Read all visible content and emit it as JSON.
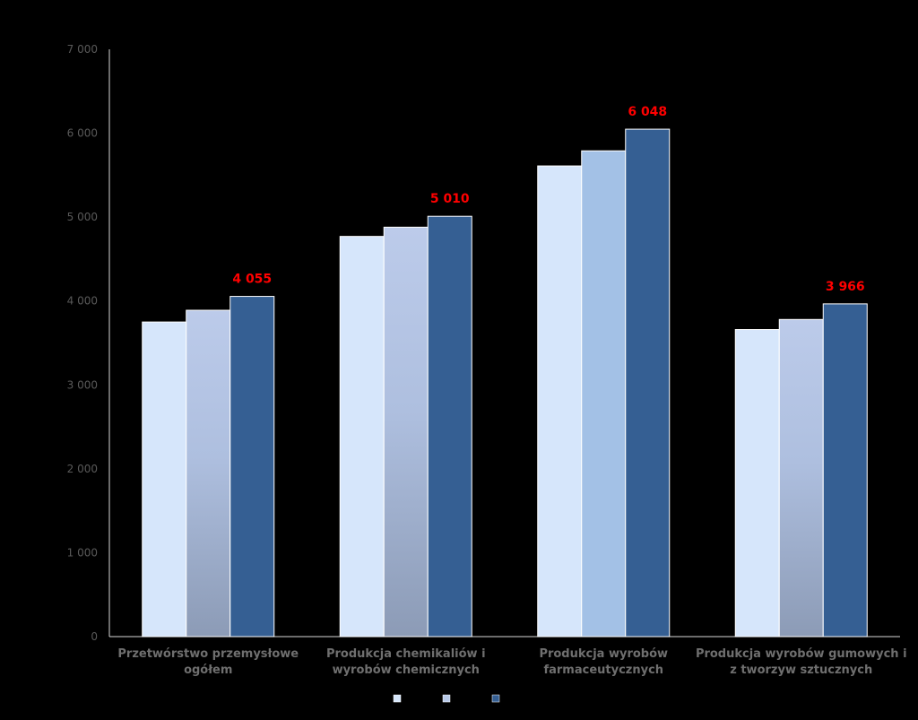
{
  "chart_data": {
    "type": "bar",
    "categories": [
      [
        "Przetwórstwo przemysłowe",
        "ogółem"
      ],
      [
        "Produkcja chemikaliów i",
        "wyrobów chemicznych"
      ],
      [
        "Produkcja wyrobów",
        "farmaceutycznych"
      ],
      [
        "Produkcja wyrobów gumowych i",
        "z tworzyw sztucznych"
      ]
    ],
    "series": [
      {
        "values": [
          3750,
          4770,
          5610,
          3660
        ],
        "color": "#d6e6fb"
      },
      {
        "values": [
          3890,
          4880,
          5790,
          3780
        ],
        "color": "#b7c9e8"
      },
      {
        "values": [
          4055,
          5010,
          6048,
          3966
        ],
        "color": "#355f93"
      }
    ],
    "data_labels": [
      "4 055",
      "5 010",
      "6 048",
      "3 966"
    ],
    "data_label_color": "#ff0000",
    "yticks": [
      "0",
      "1 000",
      "2 000",
      "3 000",
      "4 000",
      "5 000",
      "6 000",
      "7 000"
    ],
    "ylim": [
      0,
      7000
    ],
    "title": "",
    "xlabel": "",
    "ylabel": "",
    "grid": false,
    "legend_position": "bottom",
    "background": "#000000"
  }
}
